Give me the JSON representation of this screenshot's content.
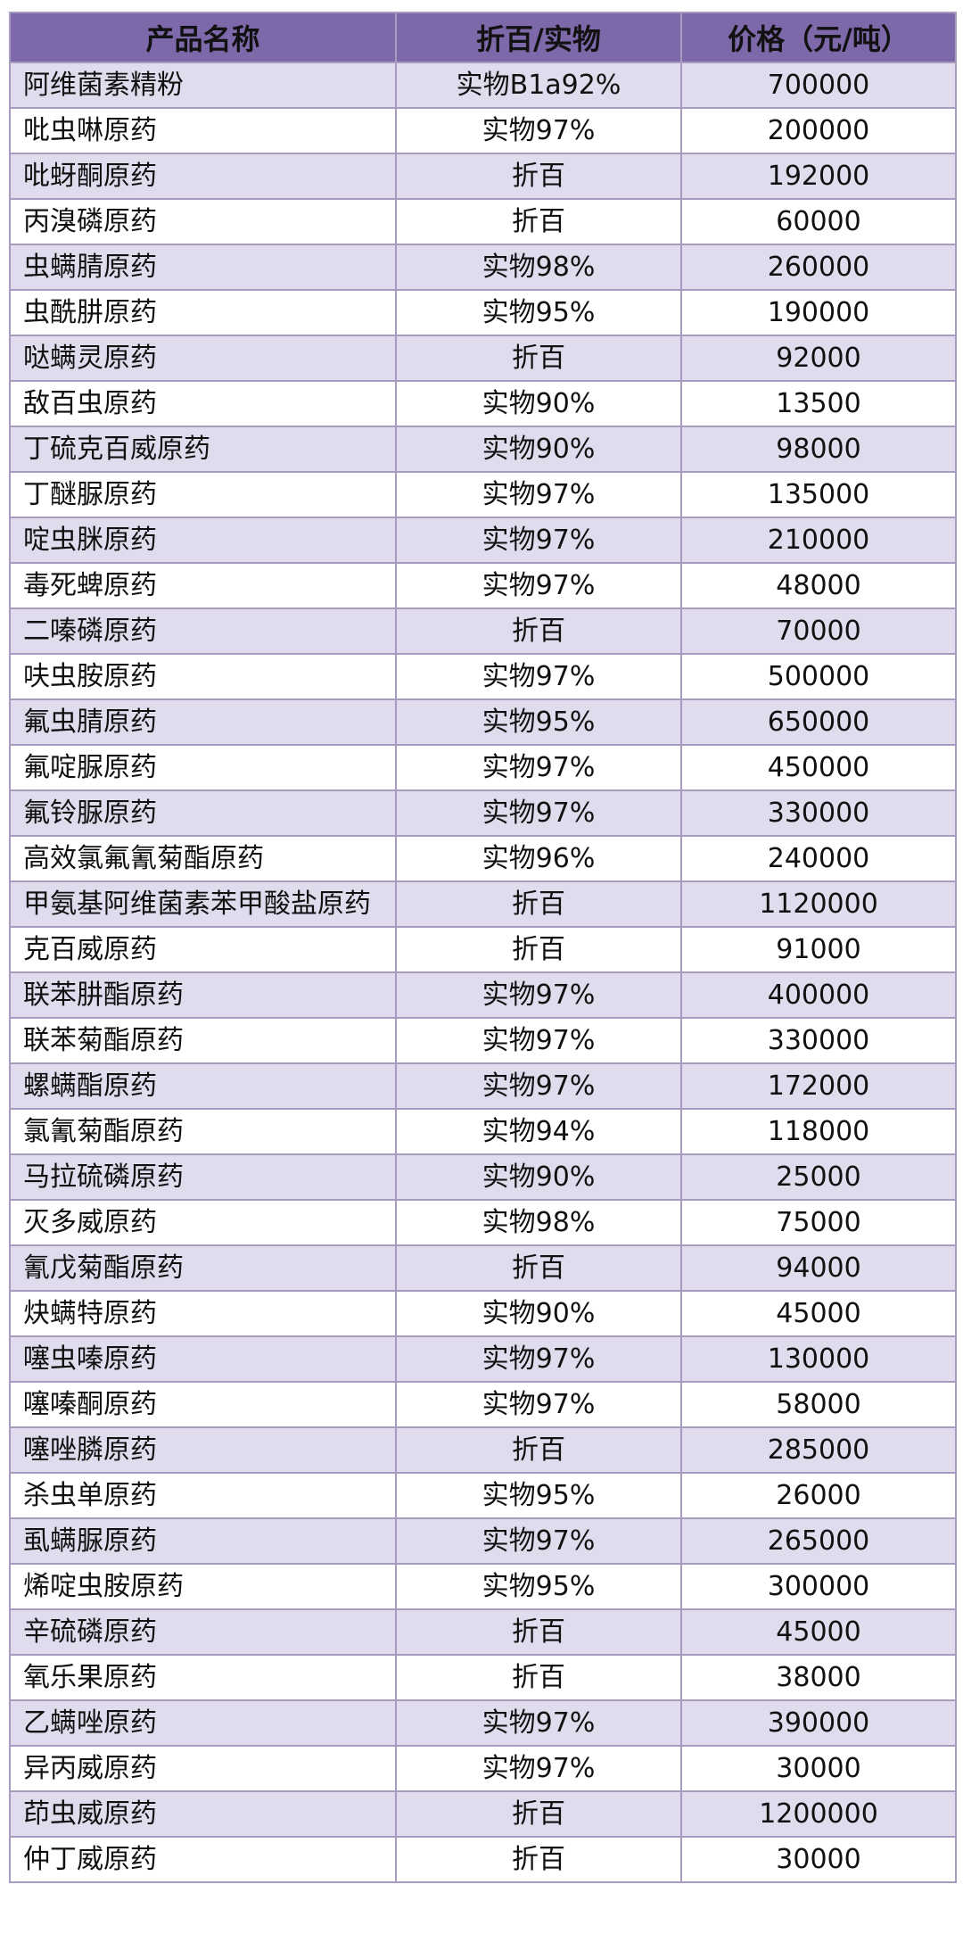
{
  "headers": [
    "产品名称",
    "折百/实物",
    "价格（元/吨）"
  ],
  "colors": {
    "header_bg": "#7d68a9",
    "row_alt_bg": "#e1dced",
    "border": "#a79cc0"
  },
  "rows": [
    [
      "阿维菌素精粉",
      "实物B1a92%",
      "700000"
    ],
    [
      "吡虫啉原药",
      "实物97%",
      "200000"
    ],
    [
      "吡蚜酮原药",
      "折百",
      "192000"
    ],
    [
      "丙溴磷原药",
      "折百",
      "60000"
    ],
    [
      "虫螨腈原药",
      "实物98%",
      "260000"
    ],
    [
      "虫酰肼原药",
      "实物95%",
      "190000"
    ],
    [
      "哒螨灵原药",
      "折百",
      "92000"
    ],
    [
      "敌百虫原药",
      "实物90%",
      "13500"
    ],
    [
      "丁硫克百威原药",
      "实物90%",
      "98000"
    ],
    [
      "丁醚脲原药",
      "实物97%",
      "135000"
    ],
    [
      "啶虫脒原药",
      "实物97%",
      "210000"
    ],
    [
      "毒死蜱原药",
      "实物97%",
      "48000"
    ],
    [
      "二嗪磷原药",
      "折百",
      "70000"
    ],
    [
      "呋虫胺原药",
      "实物97%",
      "500000"
    ],
    [
      "氟虫腈原药",
      "实物95%",
      "650000"
    ],
    [
      "氟啶脲原药",
      "实物97%",
      "450000"
    ],
    [
      "氟铃脲原药",
      "实物97%",
      "330000"
    ],
    [
      "高效氯氟氰菊酯原药",
      "实物96%",
      "240000"
    ],
    [
      "甲氨基阿维菌素苯甲酸盐原药",
      "折百",
      "1120000"
    ],
    [
      "克百威原药",
      "折百",
      "91000"
    ],
    [
      "联苯肼酯原药",
      "实物97%",
      "400000"
    ],
    [
      "联苯菊酯原药",
      "实物97%",
      "330000"
    ],
    [
      "螺螨酯原药",
      "实物97%",
      "172000"
    ],
    [
      "氯氰菊酯原药",
      "实物94%",
      "118000"
    ],
    [
      "马拉硫磷原药",
      "实物90%",
      "25000"
    ],
    [
      "灭多威原药",
      "实物98%",
      "75000"
    ],
    [
      "氰戊菊酯原药",
      "折百",
      "94000"
    ],
    [
      "炔螨特原药",
      "实物90%",
      "45000"
    ],
    [
      "噻虫嗪原药",
      "实物97%",
      "130000"
    ],
    [
      "噻嗪酮原药",
      "实物97%",
      "58000"
    ],
    [
      "噻唑膦原药",
      "折百",
      "285000"
    ],
    [
      "杀虫单原药",
      "实物95%",
      "26000"
    ],
    [
      "虱螨脲原药",
      "实物97%",
      "265000"
    ],
    [
      "烯啶虫胺原药",
      "实物95%",
      "300000"
    ],
    [
      "辛硫磷原药",
      "折百",
      "45000"
    ],
    [
      "氧乐果原药",
      "折百",
      "38000"
    ],
    [
      "乙螨唑原药",
      "实物97%",
      "390000"
    ],
    [
      "异丙威原药",
      "实物97%",
      "30000"
    ],
    [
      "茚虫威原药",
      "折百",
      "1200000"
    ],
    [
      "仲丁威原药",
      "折百",
      "30000"
    ]
  ]
}
